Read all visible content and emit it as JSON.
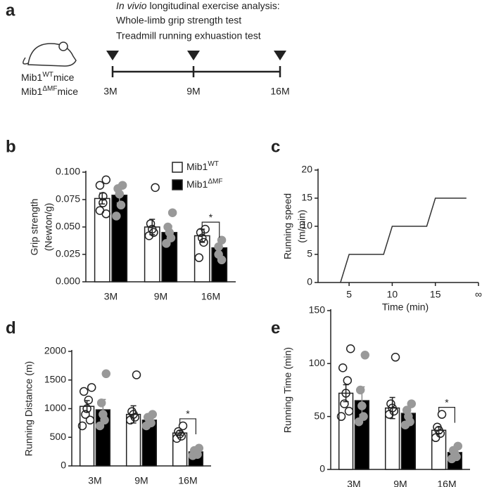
{
  "panel_a": {
    "label": "a",
    "title_italic": "In vivio",
    "title_rest": " longitudinal exercise analysis:",
    "tests": [
      "Whole-limb grip strength test",
      "Treadmill running exhuastion test"
    ],
    "groups": [
      {
        "base": "Mib1",
        "superscript": "WT",
        "suffix": "mice"
      },
      {
        "base": "Mib1",
        "superscript": "ΔMF",
        "suffix": "mice"
      }
    ],
    "timepoints": [
      "3M",
      "9M",
      "16M"
    ]
  },
  "chart_data": [
    {
      "type": "bar",
      "panel_label": "b",
      "ylabel": [
        "Grip strength",
        "(Newton/g)"
      ],
      "categories": [
        "3M",
        "9M",
        "16M"
      ],
      "ylim": [
        0,
        0.1
      ],
      "yticks": [
        {
          "value": 0,
          "label": "0.000"
        },
        {
          "value": 0.025,
          "label": "0.025"
        },
        {
          "value": 0.05,
          "label": "0.050"
        },
        {
          "value": 0.075,
          "label": "0.075"
        },
        {
          "value": 0.1,
          "label": "0.100"
        }
      ],
      "legend": true,
      "series": [
        {
          "name": "Mib1",
          "name_superscript": "WT",
          "color": "#ffffff",
          "point_color": "#ffffff",
          "values": [
            0.076,
            0.05,
            0.042
          ],
          "errors": [
            0.005,
            0.007,
            0.006
          ],
          "points": [
            [
              0.093,
              0.088,
              0.078,
              0.072,
              0.065,
              0.062
            ],
            [
              0.086,
              0.053,
              0.048,
              0.045,
              0.042
            ],
            [
              0.048,
              0.045,
              0.04,
              0.036,
              0.022
            ]
          ]
        },
        {
          "name": "Mib1",
          "name_superscript": "ΔMF",
          "color": "#000000",
          "point_color": "#999999",
          "values": [
            0.079,
            0.045,
            0.031
          ],
          "errors": [
            0.007,
            0.006,
            0.004
          ],
          "points": [
            [
              0.088,
              0.085,
              0.08,
              0.07,
              0.06
            ],
            [
              0.063,
              0.05,
              0.045,
              0.04,
              0.035
            ],
            [
              0.038,
              0.032,
              0.025,
              0.02
            ]
          ]
        }
      ],
      "annotations": [
        {
          "text": "*",
          "category": "16M"
        }
      ]
    },
    {
      "type": "line",
      "panel_label": "c",
      "ylabel": [
        "Running speed",
        "(m/min)"
      ],
      "xlabel": "Time (min)",
      "x": [
        4,
        5,
        9,
        10,
        14,
        15,
        18.6
      ],
      "values": [
        0,
        5,
        5,
        10,
        10,
        15,
        15
      ],
      "color": "#333333",
      "xlim": [
        1.4,
        20
      ],
      "xticks": [
        5,
        10,
        15,
        {
          "value": 20,
          "label": "∞"
        }
      ],
      "ylim": [
        0,
        20
      ],
      "yticks": [
        0,
        5,
        10,
        15,
        20
      ]
    },
    {
      "type": "bar",
      "panel_label": "d",
      "ylabel": [
        "Running Distance (m)"
      ],
      "categories": [
        "3M",
        "9M",
        "16M"
      ],
      "ylim": [
        0,
        2000
      ],
      "yticks": [
        0,
        500,
        1000,
        1500,
        2000
      ],
      "series": [
        {
          "name": "Mib1",
          "name_superscript": "WT",
          "color": "#ffffff",
          "point_color": "#ffffff",
          "values": [
            1040,
            900,
            575
          ],
          "errors": [
            100,
            150,
            40
          ],
          "points": [
            [
              1370,
              1300,
              1150,
              1000,
              900,
              800,
              700
            ],
            [
              1590,
              950,
              900,
              850,
              800
            ],
            [
              700,
              600,
              560,
              520,
              480
            ]
          ]
        },
        {
          "name": "Mib1",
          "name_superscript": "ΔMF",
          "color": "#000000",
          "point_color": "#999999",
          "values": [
            980,
            800,
            245
          ],
          "errors": [
            180,
            80,
            30
          ],
          "points": [
            [
              1610,
              1100,
              900,
              800,
              700
            ],
            [
              900,
              850,
              800,
              750,
              700
            ],
            [
              310,
              270,
              240,
              200,
              180
            ]
          ]
        }
      ],
      "annotations": [
        {
          "text": "*",
          "category": "16M"
        }
      ]
    },
    {
      "type": "bar",
      "panel_label": "e",
      "ylabel": [
        "Running Time (min)"
      ],
      "categories": [
        "3M",
        "9M",
        "16M"
      ],
      "ylim": [
        0,
        150
      ],
      "yticks": [
        0,
        50,
        100,
        150
      ],
      "series": [
        {
          "name": "Mib1",
          "name_superscript": "WT",
          "color": "#ffffff",
          "point_color": "#ffffff",
          "values": [
            72,
            58,
            37
          ],
          "errors": [
            8,
            10,
            3
          ],
          "points": [
            [
              114,
              96,
              84,
              72,
              62,
              55,
              50
            ],
            [
              106,
              62,
              58,
              55,
              52
            ],
            [
              52,
              40,
              37,
              34,
              30
            ]
          ]
        },
        {
          "name": "Mib1",
          "name_superscript": "ΔMF",
          "color": "#000000",
          "point_color": "#999999",
          "values": [
            65,
            53,
            16
          ],
          "errors": [
            13,
            5,
            3
          ],
          "points": [
            [
              108,
              75,
              60,
              50,
              45
            ],
            [
              62,
              56,
              50,
              45,
              42
            ],
            [
              22,
              18,
              15,
              12,
              10
            ]
          ]
        }
      ],
      "annotations": [
        {
          "text": "*",
          "category": "16M"
        }
      ]
    }
  ]
}
